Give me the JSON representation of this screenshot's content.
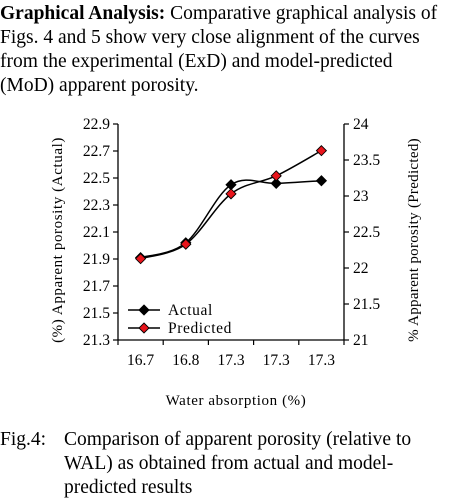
{
  "paragraph": {
    "heading": "Graphical Analysis:",
    "line1_rest": " Comparative graphical analysis of",
    "line2": "Figs. 4 and 5 show very close alignment of the curves",
    "line3": "from the experimental (ExD) and model-predicted",
    "line4": "(MoD) apparent porosity."
  },
  "chart_data": {
    "type": "line",
    "categories": [
      "16.7",
      "16.8",
      "17.3",
      "17.3",
      "17.3"
    ],
    "xlabel": "Water absorption (%)",
    "ylabel_left": "(%) Apparent porosity (Actual)",
    "ylabel_right": "% Apparent porosity (Predicted)",
    "yleft": {
      "min": 21.3,
      "max": 22.9,
      "ticks": [
        "21.3",
        "21.5",
        "21.7",
        "21.9",
        "22.1",
        "22.3",
        "22.5",
        "22.7",
        "22.9"
      ]
    },
    "yright": {
      "min": 21,
      "max": 24,
      "ticks": [
        "21",
        "21.5",
        "22",
        "22.5",
        "23",
        "23.5",
        "24"
      ]
    },
    "series": [
      {
        "name": "Actual",
        "axis": "left",
        "marker": "diamond",
        "color": "#000000",
        "values": [
          21.91,
          22.02,
          22.45,
          22.46,
          22.48
        ]
      },
      {
        "name": "Predicted",
        "axis": "right",
        "marker": "diamond",
        "color": "#e8141b",
        "values": [
          22.13,
          22.33,
          23.03,
          23.28,
          23.63
        ]
      }
    ],
    "legend_position": "bottom-left"
  },
  "caption": {
    "label": "Fig.4:",
    "line1": "Comparison of apparent porosity (relative to",
    "line2": "WAL) as obtained from actual and model-",
    "line3": "predicted results"
  }
}
